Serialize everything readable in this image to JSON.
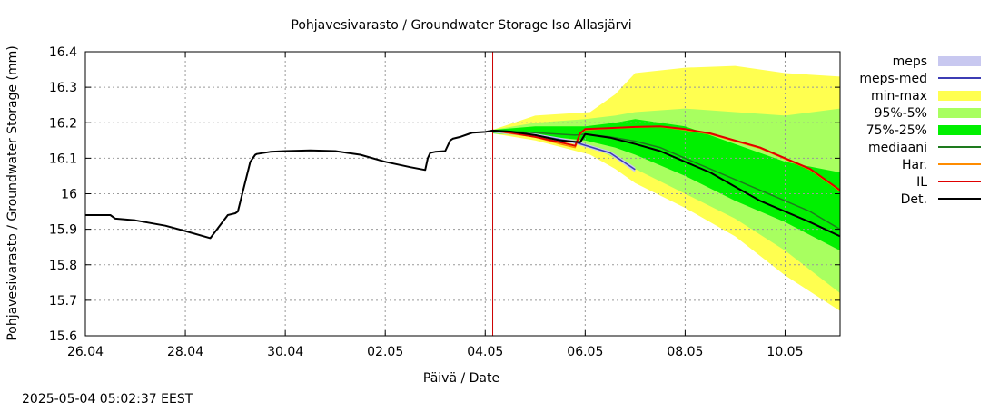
{
  "chart_data": {
    "type": "line",
    "title": "Pohjavesivarasto / Groundwater Storage   Iso Allasjärvi",
    "xlabel": "Päivä / Date",
    "ylabel": "Pohjavesivarasto / Groundwater Storage (mm)",
    "footer": "2025-05-04 05:02:37 EEST",
    "x_ticks": [
      "26.04",
      "28.04",
      "30.04",
      "02.05",
      "04.05",
      "06.05",
      "08.05",
      "10.05"
    ],
    "x_tick_days": [
      0,
      2,
      4,
      6,
      8,
      10,
      12,
      14
    ],
    "xlim_days": [
      0,
      15.1
    ],
    "ylim": [
      15.6,
      16.4
    ],
    "y_ticks": [
      "15.6",
      "15.7",
      "15.8",
      "15.9",
      "16",
      "16.1",
      "16.2",
      "16.3",
      "16.4"
    ],
    "forecast_start_day": 8.15,
    "grid": true,
    "legend_position": "right",
    "legend": [
      {
        "label": "meps",
        "kind": "band",
        "color": "#c8c8f0"
      },
      {
        "label": "meps-med",
        "kind": "line",
        "color": "#3c3cb4"
      },
      {
        "label": "min-max",
        "kind": "band",
        "color": "#ffff50"
      },
      {
        "label": "95%-5%",
        "kind": "band",
        "color": "#a8ff60"
      },
      {
        "label": "75%-25%",
        "kind": "band",
        "color": "#00f000"
      },
      {
        "label": "mediaani",
        "kind": "line",
        "color": "#1e7a1e"
      },
      {
        "label": "Har.",
        "kind": "line",
        "color": "#ff8c00"
      },
      {
        "label": "IL",
        "kind": "line",
        "color": "#e00000"
      },
      {
        "label": "Det.",
        "kind": "line",
        "color": "#000000"
      }
    ],
    "bands": [
      {
        "name": "min-max",
        "color": "#ffff50",
        "x": [
          8.15,
          9,
          10.1,
          10.6,
          11,
          12,
          13,
          14,
          15.1
        ],
        "low": [
          16.17,
          16.15,
          16.11,
          16.07,
          16.03,
          15.96,
          15.88,
          15.77,
          15.67
        ],
        "high": [
          16.18,
          16.22,
          16.23,
          16.28,
          16.34,
          16.355,
          16.36,
          16.34,
          16.33
        ]
      },
      {
        "name": "95%-5%",
        "color": "#a8ff60",
        "x": [
          8.15,
          9,
          10,
          10.6,
          11,
          12,
          13,
          14,
          15.1
        ],
        "low": [
          16.17,
          16.16,
          16.14,
          16.1,
          16.07,
          16.0,
          15.93,
          15.84,
          15.72
        ],
        "high": [
          16.18,
          16.2,
          16.21,
          16.22,
          16.23,
          16.24,
          16.23,
          16.22,
          16.24
        ]
      },
      {
        "name": "75%-25%",
        "color": "#00f000",
        "x": [
          8.15,
          9,
          10,
          10.6,
          11,
          12,
          13,
          14,
          15.1
        ],
        "low": [
          16.17,
          16.165,
          16.15,
          16.13,
          16.11,
          16.05,
          15.98,
          15.92,
          15.84
        ],
        "high": [
          16.18,
          16.19,
          16.19,
          16.2,
          16.21,
          16.19,
          16.14,
          16.09,
          16.06
        ]
      },
      {
        "name": "meps",
        "color": "#c8c8f0",
        "x": [
          8.15,
          9,
          9.8,
          10.5,
          11.0
        ],
        "low": [
          16.172,
          16.16,
          16.14,
          16.11,
          16.06
        ],
        "high": [
          16.18,
          16.17,
          16.15,
          16.12,
          16.075
        ]
      }
    ],
    "series": [
      {
        "name": "Det.",
        "color": "#000000",
        "width": 2,
        "x": [
          0,
          0.5,
          0.6,
          1.0,
          1.6,
          2.0,
          2.5,
          2.85,
          3.0,
          3.05,
          3.3,
          3.4,
          3.43,
          3.7,
          4.0,
          4.5,
          5.0,
          5.5,
          6.0,
          6.5,
          6.8,
          6.85,
          6.9,
          7.0,
          7.2,
          7.3,
          7.35,
          7.5,
          7.7,
          7.75,
          8.0,
          8.15,
          8.5,
          9.0,
          9.5,
          9.9,
          10.0,
          10.5,
          11.0,
          11.5,
          12.0,
          12.5,
          13.0,
          13.5,
          14.0,
          14.5,
          15.1
        ],
        "y": [
          15.94,
          15.94,
          15.93,
          15.925,
          15.91,
          15.895,
          15.875,
          15.94,
          15.945,
          15.95,
          16.09,
          16.11,
          16.112,
          16.118,
          16.12,
          16.122,
          16.12,
          16.11,
          16.09,
          16.075,
          16.067,
          16.1,
          16.115,
          16.118,
          16.12,
          16.15,
          16.155,
          16.16,
          16.17,
          16.172,
          16.174,
          16.178,
          16.175,
          16.165,
          16.15,
          16.145,
          16.168,
          16.158,
          16.14,
          16.12,
          16.09,
          16.06,
          16.02,
          15.98,
          15.95,
          15.92,
          15.88
        ]
      },
      {
        "name": "mediaani",
        "color": "#1e7a1e",
        "width": 1.5,
        "x": [
          8.15,
          9.0,
          9.8,
          10.0,
          10.5,
          11.0,
          11.5,
          12.0,
          12.5,
          13.0,
          13.5,
          14.0,
          14.5,
          15.1
        ],
        "y": [
          16.178,
          16.172,
          16.165,
          16.168,
          16.16,
          16.148,
          16.13,
          16.1,
          16.07,
          16.04,
          16.01,
          15.98,
          15.95,
          15.9
        ]
      },
      {
        "name": "IL",
        "color": "#e00000",
        "width": 2,
        "x": [
          8.15,
          8.5,
          9.0,
          9.5,
          9.8,
          9.9,
          10.0,
          10.5,
          11.0,
          11.5,
          12.0,
          12.5,
          13.0,
          13.5,
          14.0,
          14.5,
          15.1
        ],
        "y": [
          16.178,
          16.172,
          16.16,
          16.145,
          16.135,
          16.17,
          16.182,
          16.185,
          16.188,
          16.19,
          16.182,
          16.17,
          16.15,
          16.13,
          16.1,
          16.07,
          16.01
        ]
      },
      {
        "name": "Har.",
        "color": "#ff8c00",
        "width": 1.5,
        "x": [
          8.15,
          8.5,
          9.0,
          9.5,
          9.8,
          9.9,
          10.0,
          10.5,
          11.0,
          11.5,
          12.0,
          12.5,
          13.0,
          13.5,
          14.0,
          14.5,
          15.1
        ],
        "y": [
          16.178,
          16.17,
          16.16,
          16.14,
          16.13,
          16.168,
          16.18,
          16.184,
          16.187,
          16.189,
          16.18,
          16.168,
          16.148,
          16.128,
          16.098,
          16.068,
          16.008
        ]
      },
      {
        "name": "meps-med",
        "color": "#3c3cb4",
        "width": 1.5,
        "x": [
          8.15,
          9.0,
          9.8,
          10.5,
          11.0
        ],
        "y": [
          16.176,
          16.165,
          16.145,
          16.115,
          16.068
        ]
      }
    ]
  }
}
